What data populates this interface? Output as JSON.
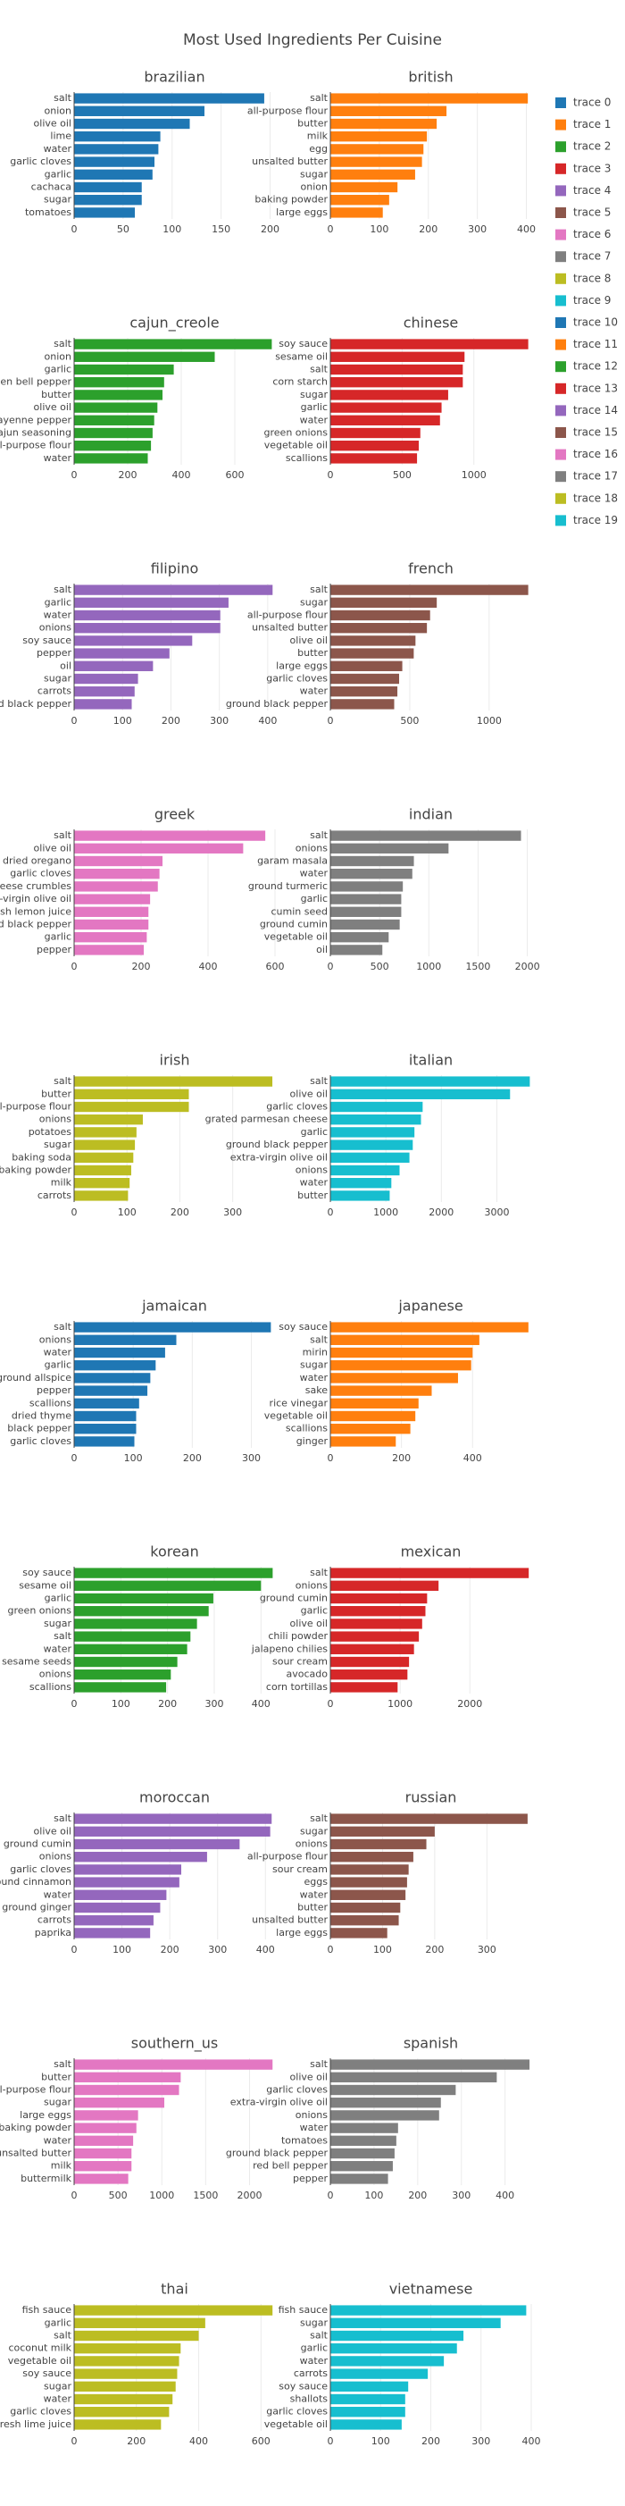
{
  "title": "Most Used Ingredients Per Cuisine",
  "chart_data": [
    {
      "type": "bar",
      "orientation": "h",
      "title": "brazilian",
      "categories": [
        "salt",
        "onion",
        "olive oil",
        "lime",
        "water",
        "garlic cloves",
        "garlic",
        "cachaca",
        "sugar",
        "tomatoes"
      ],
      "series": [
        {
          "name": "trace 0",
          "color": "#1f77b4",
          "values": [
            194,
            133,
            118,
            88,
            86,
            82,
            80,
            69,
            69,
            62
          ]
        }
      ],
      "xlim": [
        0,
        205
      ],
      "xticks": [
        0,
        50,
        100,
        150,
        200
      ],
      "grid": true
    },
    {
      "type": "bar",
      "orientation": "h",
      "title": "british",
      "categories": [
        "salt",
        "all-purpose flour",
        "butter",
        "milk",
        "egg",
        "unsalted butter",
        "sugar",
        "onion",
        "baking powder",
        "large eggs"
      ],
      "series": [
        {
          "name": "trace 1",
          "color": "#ff7f0e",
          "values": [
            403,
            237,
            217,
            197,
            190,
            187,
            173,
            137,
            120,
            107
          ]
        }
      ],
      "xlim": [
        0,
        410
      ],
      "xticks": [
        0,
        100,
        200,
        300,
        400
      ],
      "grid": true
    },
    {
      "type": "bar",
      "orientation": "h",
      "title": "cajun_creole",
      "categories": [
        "salt",
        "onion",
        "garlic",
        "green bell pepper",
        "butter",
        "olive oil",
        "cayenne pepper",
        "cajun seasoning",
        "all-purpose flour",
        "water"
      ],
      "series": [
        {
          "name": "trace 2",
          "color": "#2ca02c",
          "values": [
            738,
            525,
            372,
            336,
            330,
            311,
            299,
            293,
            287,
            275
          ]
        }
      ],
      "xlim": [
        0,
        750
      ],
      "xticks": [
        0,
        200,
        400,
        600
      ],
      "grid": true
    },
    {
      "type": "bar",
      "orientation": "h",
      "title": "chinese",
      "categories": [
        "soy sauce",
        "sesame oil",
        "salt",
        "corn starch",
        "sugar",
        "garlic",
        "water",
        "green onions",
        "vegetable oil",
        "scallions"
      ],
      "series": [
        {
          "name": "trace 3",
          "color": "#d62728",
          "values": [
            1379,
            935,
            923,
            923,
            821,
            775,
            764,
            627,
            616,
            604
          ]
        }
      ],
      "xlim": [
        0,
        1400
      ],
      "xticks": [
        0,
        500,
        1000
      ],
      "grid": true
    },
    {
      "type": "bar",
      "orientation": "h",
      "title": "filipino",
      "categories": [
        "salt",
        "garlic",
        "water",
        "onions",
        "soy sauce",
        "pepper",
        "oil",
        "sugar",
        "carrots",
        "ground black pepper"
      ],
      "series": [
        {
          "name": "trace 4",
          "color": "#9467bd",
          "values": [
            410,
            319,
            302,
            302,
            244,
            197,
            163,
            132,
            125,
            119
          ]
        }
      ],
      "xlim": [
        0,
        415
      ],
      "xticks": [
        0,
        100,
        200,
        300,
        400
      ],
      "grid": true
    },
    {
      "type": "bar",
      "orientation": "h",
      "title": "french",
      "categories": [
        "salt",
        "sugar",
        "all-purpose flour",
        "unsalted butter",
        "olive oil",
        "butter",
        "large eggs",
        "garlic cloves",
        "water",
        "ground black pepper"
      ],
      "series": [
        {
          "name": "trace 5",
          "color": "#8c564b",
          "values": [
            1246,
            670,
            628,
            608,
            536,
            525,
            453,
            433,
            422,
            402
          ]
        }
      ],
      "xlim": [
        0,
        1265
      ],
      "xticks": [
        0,
        500,
        1000
      ],
      "grid": true
    },
    {
      "type": "bar",
      "orientation": "h",
      "title": "greek",
      "categories": [
        "salt",
        "olive oil",
        "dried oregano",
        "garlic cloves",
        "feta cheese crumbles",
        "extra-virgin olive oil",
        "fresh lemon juice",
        "ground black pepper",
        "garlic",
        "pepper"
      ],
      "series": [
        {
          "name": "trace 6",
          "color": "#e377c2",
          "values": [
            571,
            505,
            264,
            255,
            250,
            227,
            222,
            222,
            217,
            208
          ]
        }
      ],
      "xlim": [
        0,
        600
      ],
      "xticks": [
        0,
        200,
        400,
        600
      ],
      "grid": true
    },
    {
      "type": "bar",
      "orientation": "h",
      "title": "indian",
      "categories": [
        "salt",
        "onions",
        "garam masala",
        "water",
        "ground turmeric",
        "garlic",
        "cumin seed",
        "ground cumin",
        "vegetable oil",
        "oil"
      ],
      "series": [
        {
          "name": "trace 7",
          "color": "#7f7f7f",
          "values": [
            1936,
            1200,
            848,
            832,
            736,
            720,
            720,
            704,
            592,
            528
          ]
        }
      ],
      "xlim": [
        0,
        2040
      ],
      "xticks": [
        0,
        500,
        1000,
        1500,
        2000
      ],
      "grid": true
    },
    {
      "type": "bar",
      "orientation": "h",
      "title": "irish",
      "categories": [
        "salt",
        "butter",
        "all-purpose flour",
        "onions",
        "potatoes",
        "sugar",
        "baking soda",
        "baking powder",
        "milk",
        "carrots"
      ],
      "series": [
        {
          "name": "trace 8",
          "color": "#bcbd22",
          "values": [
            375,
            217,
            217,
            130,
            118,
            115,
            112,
            108,
            105,
            102
          ]
        }
      ],
      "xlim": [
        0,
        380
      ],
      "xticks": [
        0,
        100,
        200,
        300
      ],
      "grid": true
    },
    {
      "type": "bar",
      "orientation": "h",
      "title": "italian",
      "categories": [
        "salt",
        "olive oil",
        "garlic cloves",
        "grated parmesan cheese",
        "garlic",
        "ground black pepper",
        "extra-virgin olive oil",
        "onions",
        "water",
        "butter"
      ],
      "series": [
        {
          "name": "trace 9",
          "color": "#17becf",
          "values": [
            3594,
            3238,
            1663,
            1633,
            1515,
            1485,
            1425,
            1247,
            1099,
            1069
          ]
        }
      ],
      "xlim": [
        0,
        3620
      ],
      "xticks": [
        0,
        1000,
        2000,
        3000
      ],
      "grid": true
    },
    {
      "type": "bar",
      "orientation": "h",
      "title": "jamaican",
      "categories": [
        "salt",
        "onions",
        "water",
        "garlic",
        "ground allspice",
        "pepper",
        "scallions",
        "dried thyme",
        "black pepper",
        "garlic cloves"
      ],
      "series": [
        {
          "name": "trace 10",
          "color": "#1f77b4",
          "values": [
            333,
            173,
            154,
            138,
            129,
            124,
            110,
            105,
            105,
            102
          ]
        }
      ],
      "xlim": [
        0,
        340
      ],
      "xticks": [
        0,
        100,
        200,
        300
      ],
      "grid": true
    },
    {
      "type": "bar",
      "orientation": "h",
      "title": "japanese",
      "categories": [
        "soy sauce",
        "salt",
        "mirin",
        "sugar",
        "water",
        "sake",
        "rice vinegar",
        "vegetable oil",
        "scallions",
        "ginger"
      ],
      "series": [
        {
          "name": "trace 11",
          "color": "#ff7f0e",
          "values": [
            557,
            419,
            400,
            396,
            359,
            285,
            248,
            239,
            225,
            184
          ]
        }
      ],
      "xlim": [
        0,
        565
      ],
      "xticks": [
        0,
        200,
        400
      ],
      "grid": true
    },
    {
      "type": "bar",
      "orientation": "h",
      "title": "korean",
      "categories": [
        "soy sauce",
        "sesame oil",
        "garlic",
        "green onions",
        "sugar",
        "salt",
        "water",
        "sesame seeds",
        "onions",
        "scallions"
      ],
      "series": [
        {
          "name": "trace 12",
          "color": "#2ca02c",
          "values": [
            425,
            400,
            298,
            288,
            263,
            249,
            242,
            221,
            207,
            197
          ]
        }
      ],
      "xlim": [
        0,
        430
      ],
      "xticks": [
        0,
        100,
        200,
        300,
        400
      ],
      "grid": true
    },
    {
      "type": "bar",
      "orientation": "h",
      "title": "mexican",
      "categories": [
        "salt",
        "onions",
        "ground cumin",
        "garlic",
        "olive oil",
        "chili powder",
        "jalapeno chilies",
        "sour cream",
        "avocado",
        "corn tortillas"
      ],
      "series": [
        {
          "name": "trace 13",
          "color": "#d62728",
          "values": [
            2844,
            1551,
            1387,
            1363,
            1316,
            1269,
            1199,
            1128,
            1105,
            964
          ]
        }
      ],
      "xlim": [
        0,
        2880
      ],
      "xticks": [
        0,
        1000,
        2000
      ],
      "grid": true
    },
    {
      "type": "bar",
      "orientation": "h",
      "title": "moroccan",
      "categories": [
        "salt",
        "olive oil",
        "ground cumin",
        "onions",
        "garlic cloves",
        "ground cinnamon",
        "water",
        "ground ginger",
        "carrots",
        "paprika"
      ],
      "series": [
        {
          "name": "trace 14",
          "color": "#9467bd",
          "values": [
            413,
            410,
            346,
            278,
            224,
            220,
            193,
            180,
            166,
            159
          ]
        }
      ],
      "xlim": [
        0,
        420
      ],
      "xticks": [
        0,
        100,
        200,
        300,
        400
      ],
      "grid": true
    },
    {
      "type": "bar",
      "orientation": "h",
      "title": "russian",
      "categories": [
        "salt",
        "sugar",
        "onions",
        "all-purpose flour",
        "sour cream",
        "eggs",
        "water",
        "butter",
        "unsalted butter",
        "large eggs"
      ],
      "series": [
        {
          "name": "trace 15",
          "color": "#8c564b",
          "values": [
            378,
            200,
            184,
            159,
            150,
            147,
            144,
            134,
            131,
            109
          ]
        }
      ],
      "xlim": [
        0,
        385
      ],
      "xticks": [
        0,
        100,
        200,
        300
      ],
      "grid": true
    },
    {
      "type": "bar",
      "orientation": "h",
      "title": "southern_us",
      "categories": [
        "salt",
        "butter",
        "all-purpose flour",
        "sugar",
        "large eggs",
        "baking powder",
        "water",
        "unsalted butter",
        "milk",
        "buttermilk"
      ],
      "series": [
        {
          "name": "trace 16",
          "color": "#e377c2",
          "values": [
            2262,
            1215,
            1196,
            1028,
            729,
            710,
            673,
            654,
            654,
            617
          ]
        }
      ],
      "xlim": [
        0,
        2290
      ],
      "xticks": [
        0,
        500,
        1000,
        1500,
        2000
      ],
      "grid": true
    },
    {
      "type": "bar",
      "orientation": "h",
      "title": "spanish",
      "categories": [
        "salt",
        "olive oil",
        "garlic cloves",
        "extra-virgin olive oil",
        "onions",
        "water",
        "tomatoes",
        "ground black pepper",
        "red bell pepper",
        "pepper"
      ],
      "series": [
        {
          "name": "trace 17",
          "color": "#7f7f7f",
          "values": [
            456,
            381,
            287,
            253,
            249,
            155,
            151,
            147,
            143,
            132
          ]
        }
      ],
      "xlim": [
        0,
        460
      ],
      "xticks": [
        0,
        100,
        200,
        300,
        400
      ],
      "grid": true
    },
    {
      "type": "bar",
      "orientation": "h",
      "title": "thai",
      "categories": [
        "fish sauce",
        "garlic",
        "salt",
        "coconut milk",
        "vegetable oil",
        "soy sauce",
        "sugar",
        "water",
        "garlic cloves",
        "fresh lime juice"
      ],
      "series": [
        {
          "name": "trace 18",
          "color": "#bcbd22",
          "values": [
            637,
            421,
            400,
            342,
            337,
            331,
            326,
            316,
            305,
            279
          ]
        }
      ],
      "xlim": [
        0,
        645
      ],
      "xticks": [
        0,
        200,
        400,
        600
      ],
      "grid": true
    },
    {
      "type": "bar",
      "orientation": "h",
      "title": "vietnamese",
      "categories": [
        "fish sauce",
        "sugar",
        "salt",
        "garlic",
        "water",
        "carrots",
        "soy sauce",
        "shallots",
        "garlic cloves",
        "vegetable oil"
      ],
      "series": [
        {
          "name": "trace 19",
          "color": "#17becf",
          "values": [
            390,
            339,
            265,
            252,
            226,
            194,
            155,
            149,
            149,
            142
          ]
        }
      ],
      "xlim": [
        0,
        400
      ],
      "xticks": [
        0,
        100,
        200,
        300,
        400
      ],
      "grid": true
    }
  ]
}
